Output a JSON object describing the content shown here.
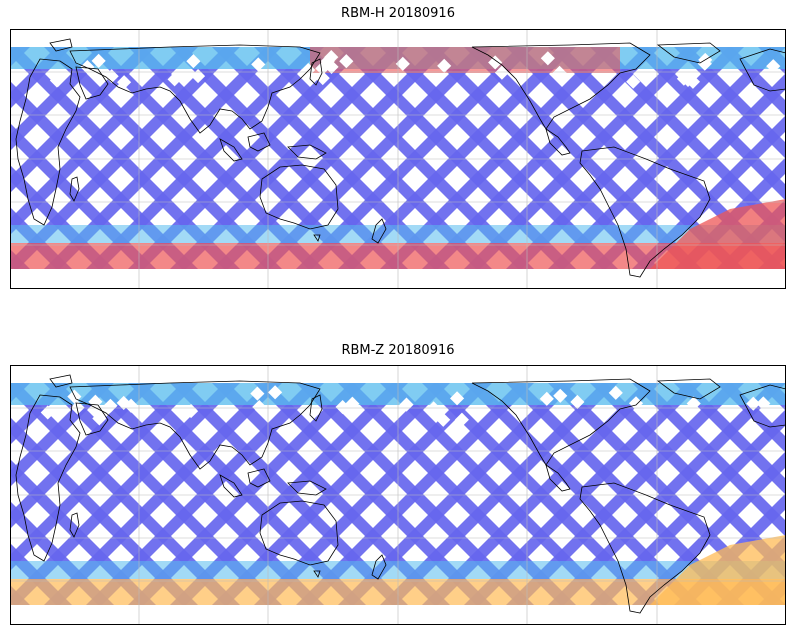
{
  "panels": [
    {
      "title": "RBM-H 20180916",
      "colors": {
        "background": "#ffffff",
        "swath_low": "#6666ee",
        "swath_mid": "#55bbee",
        "swath_high": "#ee5555",
        "land_outline": "#000000",
        "grid": "#bbbbbb"
      },
      "hot_regions": [
        "southern-ocean-band",
        "north-pacific-arc",
        "south-atlantic-patch"
      ]
    },
    {
      "title": "RBM-Z 20180916",
      "colors": {
        "background": "#ffffff",
        "swath_low": "#6666ee",
        "swath_mid": "#55bbee",
        "swath_high": "#ffbb55",
        "land_outline": "#000000",
        "grid": "#bbbbbb"
      },
      "hot_regions": [
        "southern-ocean-band",
        "south-atlantic-patch"
      ]
    }
  ]
}
